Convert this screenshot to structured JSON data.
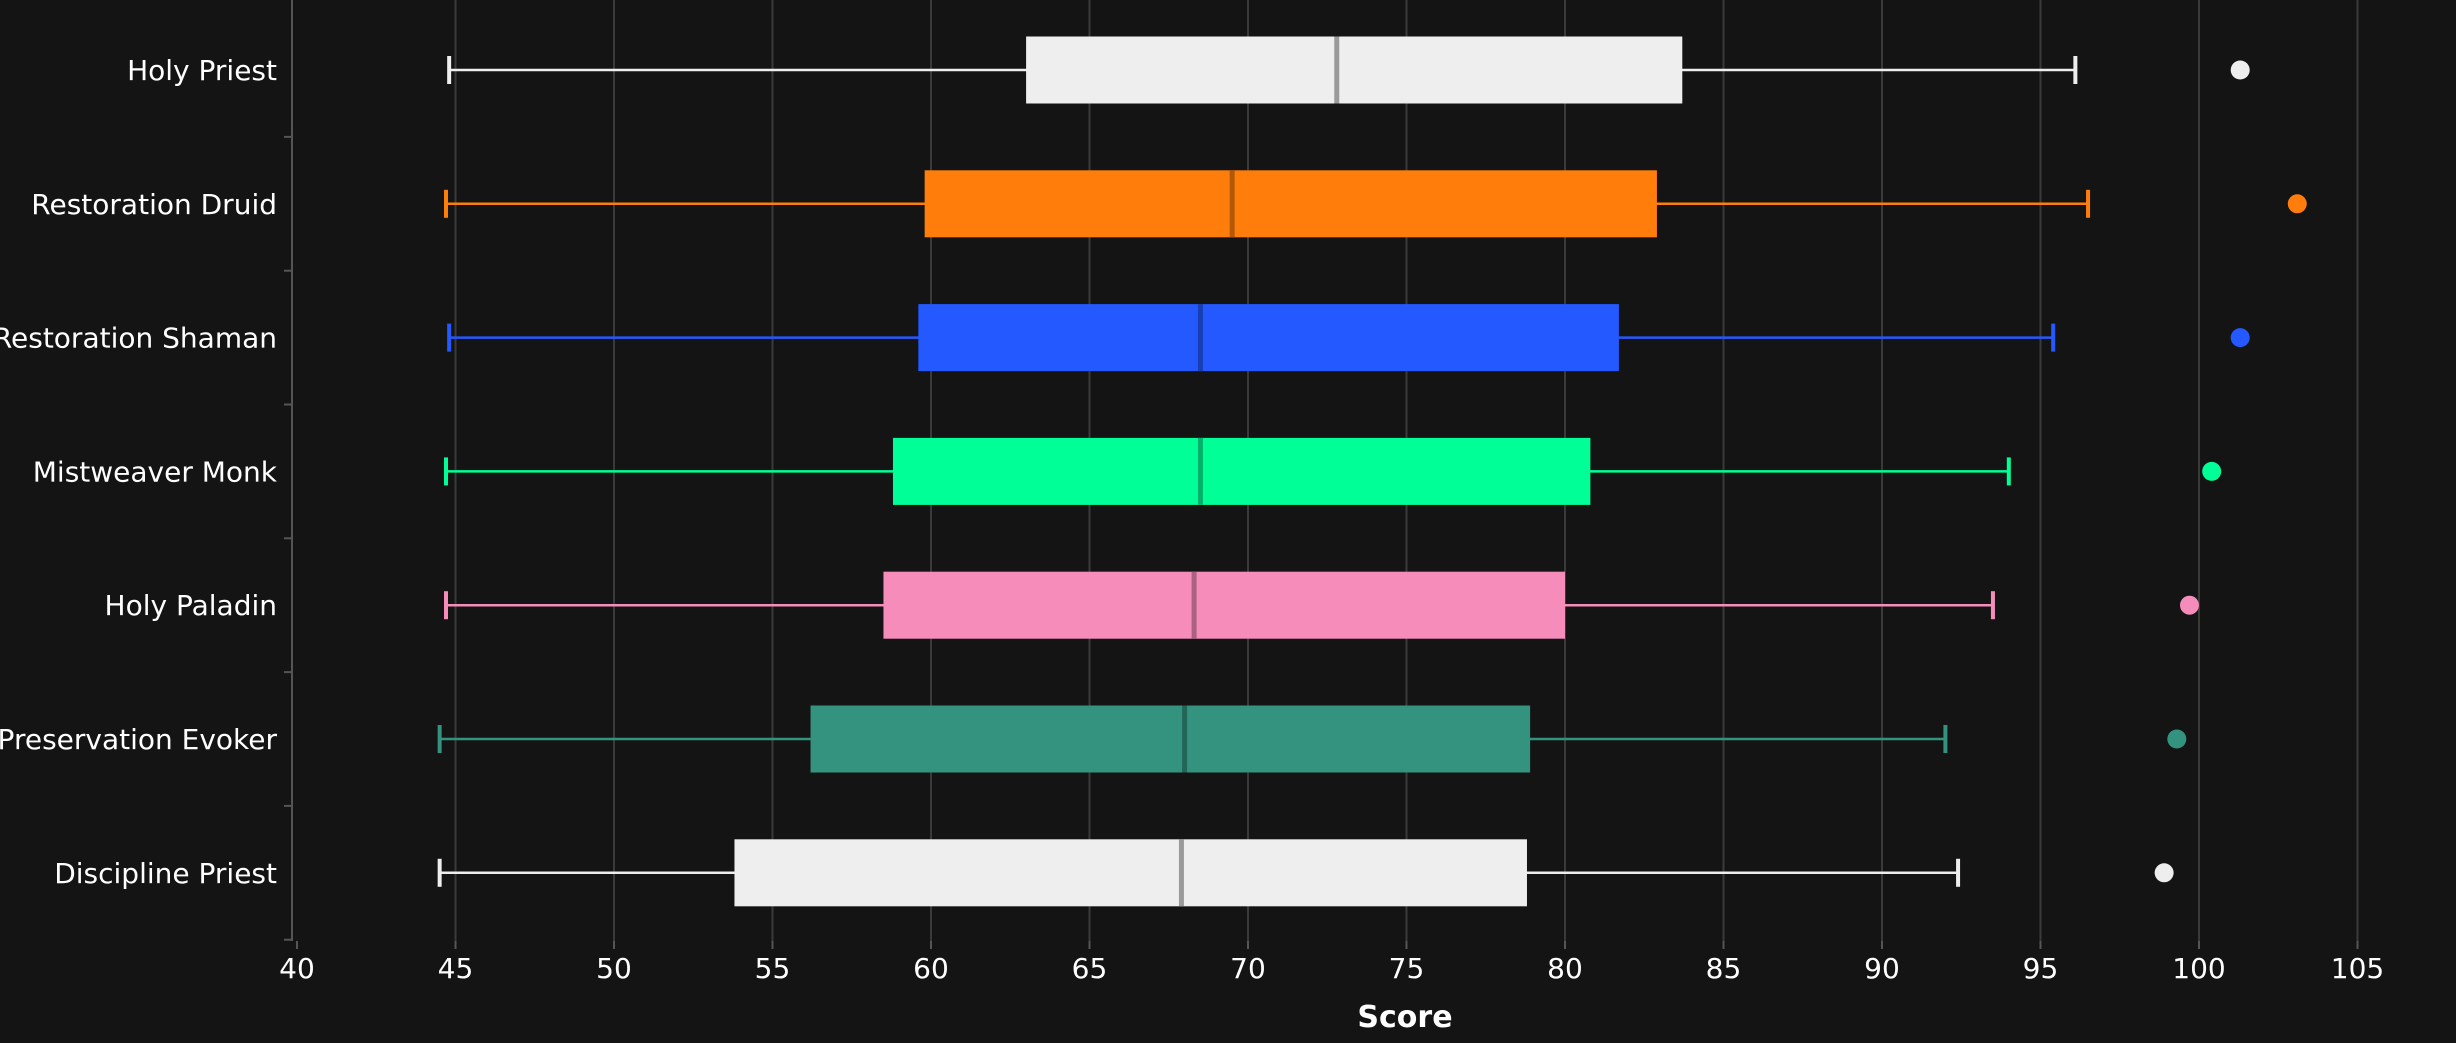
{
  "chart_data": {
    "type": "box",
    "title": "",
    "xlabel": "Score",
    "ylabel": "",
    "xlim": [
      40,
      107
    ],
    "xticks": [
      40,
      45,
      50,
      55,
      60,
      65,
      70,
      75,
      80,
      85,
      90,
      95,
      100,
      105
    ],
    "grid": true,
    "orientation": "horizontal",
    "series": [
      {
        "name": "Holy Priest",
        "color": "#eeeeee",
        "median_color": "#9a9a9a",
        "whisker_low": 44.8,
        "q1": 63.0,
        "median": 72.8,
        "q3": 83.7,
        "whisker_high": 96.1,
        "outlier": 101.3
      },
      {
        "name": "Restoration Druid",
        "color": "#ff7d0a",
        "median_color": "#b25807",
        "whisker_low": 44.7,
        "q1": 59.8,
        "median": 69.5,
        "q3": 82.9,
        "whisker_high": 96.5,
        "outlier": 103.1
      },
      {
        "name": "Restoration Shaman",
        "color": "#2459ff",
        "median_color": "#193eb2",
        "whisker_low": 44.8,
        "q1": 59.6,
        "median": 68.5,
        "q3": 81.7,
        "whisker_high": 95.4,
        "outlier": 101.3
      },
      {
        "name": "Mistweaver Monk",
        "color": "#00ff96",
        "median_color": "#00b269",
        "whisker_low": 44.7,
        "q1": 58.8,
        "median": 68.5,
        "q3": 80.8,
        "whisker_high": 94.0,
        "outlier": 100.4
      },
      {
        "name": "Holy Paladin",
        "color": "#f58cba",
        "median_color": "#ab6282",
        "whisker_low": 44.7,
        "q1": 58.5,
        "median": 68.3,
        "q3": 80.0,
        "whisker_high": 93.5,
        "outlier": 99.7
      },
      {
        "name": "Preservation Evoker",
        "color": "#33937f",
        "median_color": "#236658",
        "whisker_low": 44.5,
        "q1": 56.2,
        "median": 68.0,
        "q3": 78.9,
        "whisker_high": 92.0,
        "outlier": 99.3
      },
      {
        "name": "Discipline Priest",
        "color": "#eeeeee",
        "median_color": "#9a9a9a",
        "whisker_low": 44.5,
        "q1": 53.8,
        "median": 67.9,
        "q3": 78.8,
        "whisker_high": 92.4,
        "outlier": 98.9
      }
    ]
  }
}
